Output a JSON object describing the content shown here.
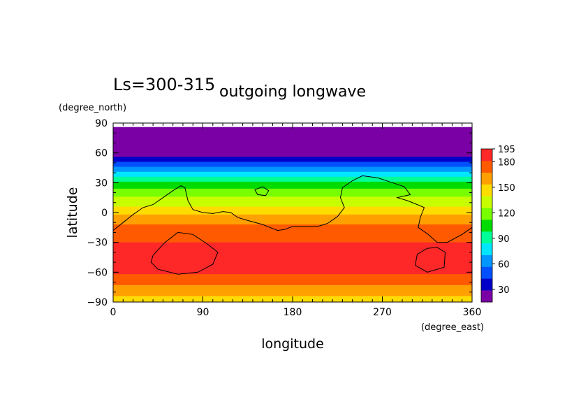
{
  "chart_data": {
    "type": "heatmap",
    "title": "outgoing longwave",
    "subtitle": "Ls=300-315",
    "xlabel": "longitude",
    "ylabel": "latitude",
    "x_units": "(degree_east)",
    "y_units": "(degree_north)",
    "xlim": [
      0,
      360
    ],
    "ylim": [
      -90,
      90
    ],
    "x_ticks": [
      0,
      90,
      180,
      270,
      360
    ],
    "y_ticks": [
      90,
      60,
      30,
      0,
      -30,
      -60,
      -90
    ],
    "colorbar": {
      "labels": [
        195,
        180,
        150,
        120,
        90,
        60,
        30
      ],
      "levels": [
        15,
        30,
        45,
        60,
        75,
        90,
        105,
        120,
        135,
        150,
        165,
        180,
        195
      ],
      "colors": [
        "#7a00a6",
        "#0000c8",
        "#0050ff",
        "#0096ff",
        "#00e6ff",
        "#00ff96",
        "#00dc00",
        "#78ff00",
        "#c8ff00",
        "#ffdc00",
        "#ffa000",
        "#ff5a00",
        "#ff2828"
      ]
    },
    "bands": [
      {
        "lat_top": 86,
        "lat_bottom": 56,
        "value_level": 0
      },
      {
        "lat_top": 56,
        "lat_bottom": 51,
        "value_level": 1
      },
      {
        "lat_top": 51,
        "lat_bottom": 46,
        "value_level": 2
      },
      {
        "lat_top": 46,
        "lat_bottom": 41,
        "value_level": 3
      },
      {
        "lat_top": 41,
        "lat_bottom": 36,
        "value_level": 4
      },
      {
        "lat_top": 36,
        "lat_bottom": 31,
        "value_level": 5
      },
      {
        "lat_top": 31,
        "lat_bottom": 24,
        "value_level": 6
      },
      {
        "lat_top": 24,
        "lat_bottom": 16,
        "value_level": 7
      },
      {
        "lat_top": 16,
        "lat_bottom": 6,
        "value_level": 8
      },
      {
        "lat_top": 6,
        "lat_bottom": -2,
        "value_level": 9
      },
      {
        "lat_top": -2,
        "lat_bottom": -12,
        "value_level": 10
      },
      {
        "lat_top": -12,
        "lat_bottom": -30,
        "value_level": 11
      },
      {
        "lat_top": -30,
        "lat_bottom": -62,
        "value_level": 12
      },
      {
        "lat_top": -62,
        "lat_bottom": -73,
        "value_level": 11
      },
      {
        "lat_top": -73,
        "lat_bottom": -84,
        "value_level": 10
      },
      {
        "lat_top": -84,
        "lat_bottom": -90,
        "value_level": 9
      }
    ],
    "contours": [
      [
        [
          0,
          -18
        ],
        [
          10,
          -10
        ],
        [
          20,
          -2
        ],
        [
          30,
          5
        ],
        [
          40,
          8
        ],
        [
          50,
          15
        ],
        [
          60,
          22
        ],
        [
          68,
          27
        ],
        [
          72,
          25
        ],
        [
          75,
          12
        ],
        [
          80,
          3
        ],
        [
          90,
          0
        ],
        [
          100,
          -1
        ],
        [
          110,
          1
        ],
        [
          118,
          0
        ],
        [
          125,
          -5
        ],
        [
          135,
          -8
        ],
        [
          150,
          -12
        ],
        [
          160,
          -16
        ],
        [
          165,
          -18
        ],
        [
          172,
          -17
        ],
        [
          180,
          -14
        ],
        [
          195,
          -14
        ],
        [
          205,
          -14
        ],
        [
          215,
          -11
        ],
        [
          225,
          -4
        ],
        [
          232,
          5
        ],
        [
          228,
          15
        ],
        [
          230,
          25
        ],
        [
          240,
          32
        ],
        [
          250,
          37
        ],
        [
          265,
          35
        ],
        [
          280,
          30
        ],
        [
          292,
          26
        ],
        [
          298,
          18
        ],
        [
          285,
          15
        ],
        [
          295,
          12
        ],
        [
          305,
          8
        ],
        [
          312,
          5
        ],
        [
          308,
          -5
        ],
        [
          306,
          -15
        ],
        [
          316,
          -22
        ],
        [
          325,
          -30
        ],
        [
          335,
          -30
        ],
        [
          350,
          -22
        ],
        [
          360,
          -15
        ]
      ],
      [
        [
          142,
          23
        ],
        [
          150,
          26
        ],
        [
          156,
          22
        ],
        [
          153,
          17
        ],
        [
          145,
          18
        ],
        [
          142,
          23
        ]
      ],
      [
        [
          40,
          -43
        ],
        [
          52,
          -30
        ],
        [
          65,
          -20
        ],
        [
          80,
          -22
        ],
        [
          95,
          -32
        ],
        [
          105,
          -40
        ],
        [
          100,
          -52
        ],
        [
          85,
          -60
        ],
        [
          65,
          -62
        ],
        [
          45,
          -57
        ],
        [
          38,
          -50
        ],
        [
          40,
          -43
        ]
      ],
      [
        [
          305,
          -42
        ],
        [
          315,
          -36
        ],
        [
          325,
          -35
        ],
        [
          333,
          -40
        ],
        [
          332,
          -55
        ],
        [
          315,
          -60
        ],
        [
          303,
          -53
        ],
        [
          305,
          -42
        ]
      ]
    ]
  }
}
